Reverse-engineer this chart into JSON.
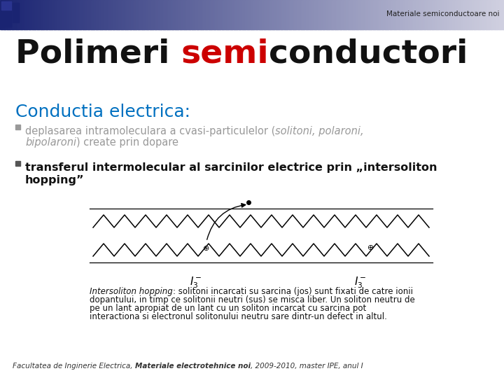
{
  "header_text": "Materiale semiconductoare noi",
  "subtitle": "Conductia electrica:",
  "subtitle_color": "#0070C0",
  "bullet1_pre": "deplasarea intramoleculara a cvasi-particulelor (",
  "bullet1_italic": "solitoni, polaroni,",
  "bullet1_line2_italic": "bipolaroni",
  "bullet1_line2_post": ") create prin dopare",
  "bullet2_line1": "transferul intermolecular al sarcinilor electrice prin „intersoliton",
  "bullet2_line2": "hopping”",
  "caption_italic": "Intersoliton hopping",
  "caption_rest": ": solitoni incarcati su sarcina (jos) sunt fixati de catre ionii",
  "caption_line2": "dopantului, in timp ce solitonii neutri (sus) se misca liber. Un soliton neutru de",
  "caption_line3": "pe un lant apropiat de un lant cu un soliton incarcat cu sarcina pot",
  "caption_line4": "interactiona si electronul solitonului neutru sare dintr-un defect in altul.",
  "footer_pre": "Facultatea de Inginerie Electrica, ",
  "footer_bold": "Materiale electrotehnice noi",
  "footer_post": ", 2009-2010, master IPE, anul I",
  "bg_color": "#ffffff",
  "title_color": "#111111",
  "title_red": "#CC0000",
  "bullet1_color": "#999999",
  "bullet2_color": "#111111",
  "caption_color": "#111111",
  "footer_color": "#333333",
  "header_dark": "#1a2472",
  "header_light": "#d0d0e0"
}
